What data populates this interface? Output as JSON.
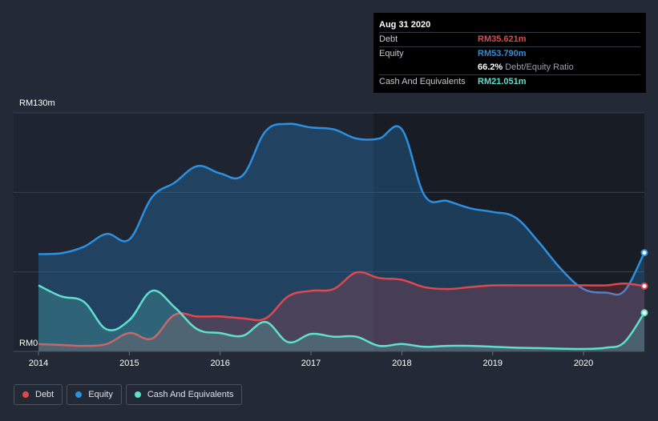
{
  "tooltip": {
    "date": "Aug 31 2020",
    "debt_label": "Debt",
    "debt_value": "RM35.621m",
    "equity_label": "Equity",
    "equity_value": "RM53.790m",
    "ratio_value": "66.2%",
    "ratio_label": "Debt/Equity Ratio",
    "cash_label": "Cash And Equivalents",
    "cash_value": "RM21.051m"
  },
  "legend": {
    "debt": "Debt",
    "equity": "Equity",
    "cash": "Cash And Equivalents"
  },
  "colors": {
    "debt": "#e0474f",
    "equity": "#2d8fe0",
    "cash": "#5fe0cc",
    "background": "#232a36"
  },
  "chart_data": {
    "type": "area",
    "title": "",
    "xlabel": "",
    "ylabel": "",
    "ylim": [
      0,
      130
    ],
    "y_tick_labels": [
      "RM0",
      "RM130m"
    ],
    "x_range": [
      2014,
      2020.67
    ],
    "x_tick_labels": [
      "2014",
      "2015",
      "2016",
      "2017",
      "2018",
      "2019",
      "2020"
    ],
    "x_tick_values": [
      2014,
      2015,
      2016,
      2017,
      2018,
      2019,
      2020
    ],
    "series": [
      {
        "name": "Equity",
        "x": [
          2014,
          2014.25,
          2014.5,
          2014.75,
          2015,
          2015.25,
          2015.5,
          2015.75,
          2016,
          2016.25,
          2016.5,
          2016.75,
          2017,
          2017.25,
          2017.5,
          2017.75,
          2018,
          2018.25,
          2018.5,
          2018.75,
          2019,
          2019.25,
          2019.5,
          2019.75,
          2020,
          2020.25,
          2020.45,
          2020.67
        ],
        "values": [
          53,
          53.5,
          57,
          64,
          61,
          84,
          92,
          101,
          97,
          96,
          120,
          124,
          122,
          121,
          116,
          116,
          121,
          85,
          82,
          78,
          76,
          73,
          60,
          45,
          34,
          32,
          33,
          53.79
        ]
      },
      {
        "name": "Debt",
        "x": [
          2014,
          2014.25,
          2014.5,
          2014.75,
          2015,
          2015.25,
          2015.5,
          2015.75,
          2016,
          2016.25,
          2016.5,
          2016.75,
          2017,
          2017.25,
          2017.5,
          2017.75,
          2018,
          2018.25,
          2018.5,
          2018.75,
          2019,
          2019.25,
          2019.5,
          2019.75,
          2020,
          2020.25,
          2020.45,
          2020.67
        ],
        "values": [
          4,
          3.5,
          3,
          4,
          10,
          7,
          20,
          19,
          19,
          18,
          18,
          30,
          33,
          34,
          43,
          40,
          39,
          35,
          34,
          35,
          36,
          36,
          36,
          36,
          36,
          36,
          37,
          35.621
        ]
      },
      {
        "name": "Cash And Equivalents",
        "x": [
          2014,
          2014.25,
          2014.5,
          2014.75,
          2015,
          2015.25,
          2015.5,
          2015.75,
          2016,
          2016.25,
          2016.5,
          2016.75,
          2017,
          2017.25,
          2017.5,
          2017.75,
          2018,
          2018.25,
          2018.5,
          2018.75,
          2019,
          2019.25,
          2019.5,
          2019.75,
          2020,
          2020.25,
          2020.45,
          2020.67
        ],
        "values": [
          36,
          30,
          27,
          12,
          17,
          33,
          24,
          12,
          10,
          8.5,
          16,
          5,
          9.5,
          8,
          8,
          3,
          4,
          2.5,
          3,
          3,
          2.5,
          2,
          1.8,
          1.5,
          1.3,
          2,
          5,
          21.051
        ]
      }
    ]
  }
}
